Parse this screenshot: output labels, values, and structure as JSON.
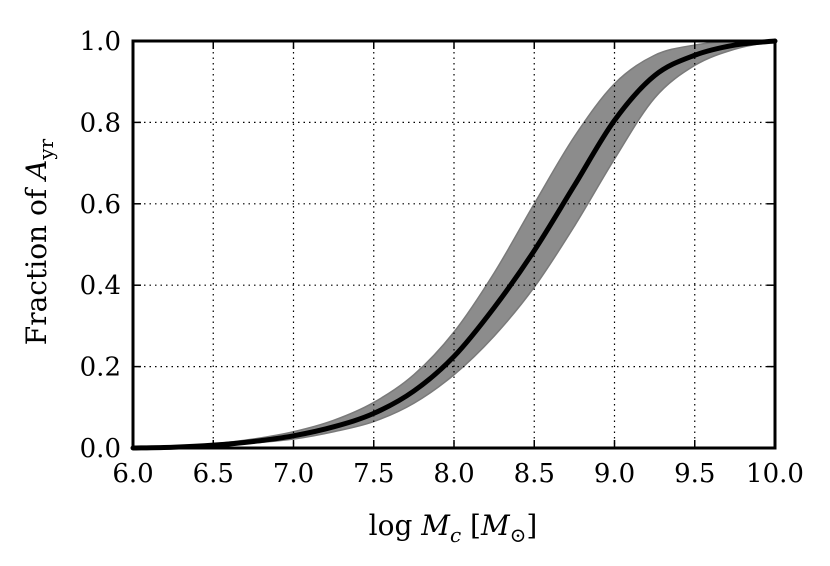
{
  "chart_data": {
    "type": "line",
    "title": "",
    "xlabel": {
      "prefix": "log ",
      "var": "M",
      "var_sub": "c",
      "unit_open": " [",
      "unit_var": "M",
      "unit_sub": "⊙",
      "unit_close": "]"
    },
    "ylabel": {
      "prefix": "Fraction of ",
      "var": "A",
      "var_sub": "yr"
    },
    "xlim": [
      6.0,
      10.0
    ],
    "ylim": [
      0.0,
      1.0
    ],
    "x_ticks": [
      "6.0",
      "6.5",
      "7.0",
      "7.5",
      "8.0",
      "8.5",
      "9.0",
      "9.5",
      "10.0"
    ],
    "y_ticks": [
      "0.0",
      "0.2",
      "0.4",
      "0.6",
      "0.8",
      "1.0"
    ],
    "grid": true,
    "grid_style": "dotted",
    "series": [
      {
        "kind": "median-line",
        "color": "#000000",
        "x": [
          6.0,
          6.25,
          6.5,
          6.75,
          7.0,
          7.25,
          7.5,
          7.75,
          8.0,
          8.25,
          8.5,
          8.75,
          9.0,
          9.25,
          9.5,
          9.75,
          10.0
        ],
        "y": [
          0.0,
          0.002,
          0.007,
          0.016,
          0.03,
          0.052,
          0.085,
          0.14,
          0.225,
          0.345,
          0.485,
          0.645,
          0.805,
          0.915,
          0.965,
          0.99,
          1.0
        ]
      },
      {
        "kind": "confidence-band",
        "color": "#8c8c8c",
        "x": [
          6.0,
          6.25,
          6.5,
          6.75,
          7.0,
          7.25,
          7.5,
          7.75,
          8.0,
          8.25,
          8.5,
          8.75,
          9.0,
          9.25,
          9.5,
          9.75,
          10.0
        ],
        "lower": [
          0.0,
          0.001,
          0.004,
          0.012,
          0.022,
          0.04,
          0.065,
          0.11,
          0.18,
          0.275,
          0.395,
          0.545,
          0.71,
          0.86,
          0.94,
          0.98,
          1.0
        ],
        "upper": [
          0.0,
          0.003,
          0.01,
          0.022,
          0.04,
          0.068,
          0.112,
          0.18,
          0.285,
          0.43,
          0.6,
          0.765,
          0.895,
          0.965,
          0.99,
          1.0,
          1.0
        ]
      }
    ]
  }
}
